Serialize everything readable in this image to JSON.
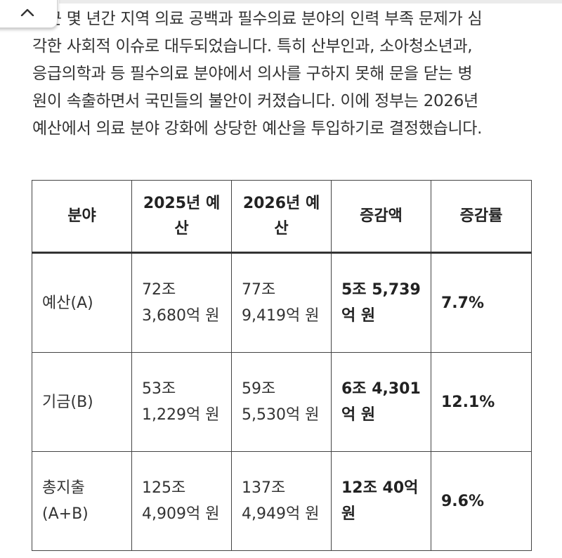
{
  "collapse_button": {
    "icon": "chevron-up-icon"
  },
  "intro_lines": [
    "최근 몇 년간 지역 의료 공백과 필수의료 분야의 인력 부족 문제가 심",
    "각한 사회적 이슈로 대두되었습니다. 특히 산부인과, 소아청소년과,",
    "응급의학과 등 필수의료 분야에서 의사를 구하지 못해 문을 닫는 병",
    "원이 속출하면서 국민들의 불안이 커졌습니다. 이에 정부는 2026년",
    "예산에서 의료 분야 강화에 상당한 예산을 투입하기로 결정했습니다."
  ],
  "table": {
    "headers": {
      "field": "분야",
      "budget_2025": "2025년 예산",
      "budget_2026": "2026년 예산",
      "change_amount": "증감액",
      "change_rate": "증감률"
    },
    "rows": [
      {
        "field": "예산(A)",
        "budget_2025": "72조 3,680억 원",
        "budget_2026": "77조 9,419억 원",
        "change_amount": "5조 5,739억 원",
        "change_rate": "7.7%"
      },
      {
        "field": "기금(B)",
        "budget_2025": "53조 1,229억 원",
        "budget_2026": "59조 5,530억 원",
        "change_amount": "6조 4,301억 원",
        "change_rate": "12.1%"
      },
      {
        "field": "총지출 (A+B)",
        "budget_2025": "125조 4,909억 원",
        "budget_2026": "137조 4,949억 원",
        "change_amount": "12조 40억 원",
        "change_rate": "9.6%"
      }
    ]
  }
}
